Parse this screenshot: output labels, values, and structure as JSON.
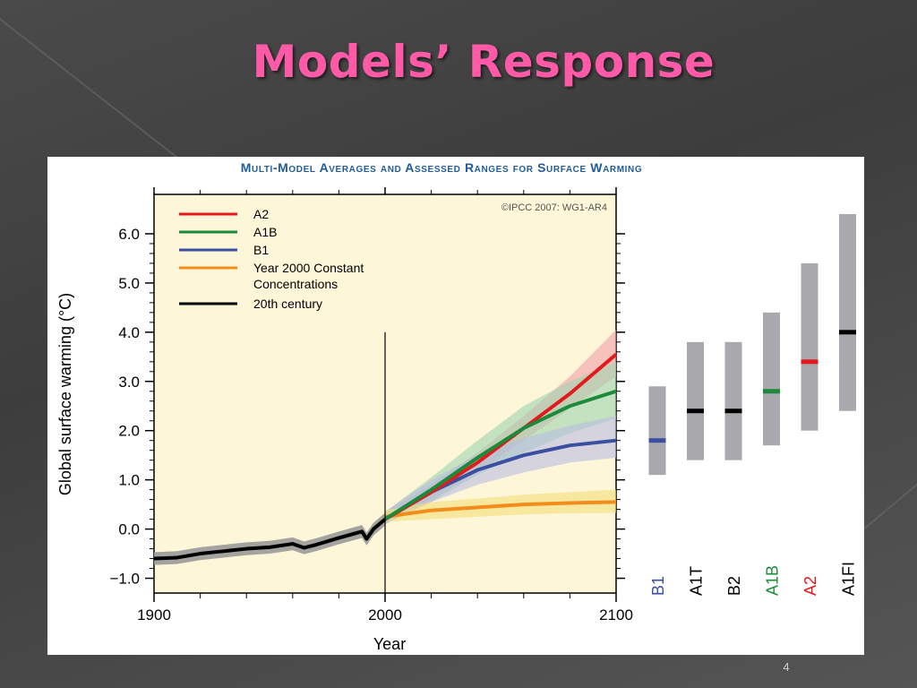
{
  "slide": {
    "title": "Models’ Response",
    "number": "4"
  },
  "chart_data": [
    {
      "type": "line",
      "title": "Multi-Model Averages and Assessed Ranges for Surface Warming",
      "credit": "©IPCC 2007: WG1-AR4",
      "xlabel": "Year",
      "ylabel": "Global surface warming (°C)",
      "xlim": [
        1900,
        2100
      ],
      "ylim": [
        -1.3,
        6.8
      ],
      "x_ticks": [
        "1900",
        "2000",
        "2100"
      ],
      "y_ticks": [
        "6.0",
        "5.0",
        "4.0",
        "3.0",
        "2.0",
        "1.0",
        "0.0",
        "−1.0"
      ],
      "marker_year": 2000,
      "background": "#fdf6d8",
      "legend": {
        "position": "top-left",
        "entries": [
          {
            "label": "A2",
            "color": "#e31a1c"
          },
          {
            "label": "A1B",
            "color": "#1b8a3a"
          },
          {
            "label": "B1",
            "color": "#3a4fa0"
          },
          {
            "label": "Year 2000 Constant",
            "label2": "Concentrations",
            "color": "#f28c1b"
          },
          {
            "label": "20th century",
            "color": "#000000"
          }
        ]
      },
      "series": [
        {
          "name": "20th century",
          "color": "#000000",
          "band_color": "#9a9a9a",
          "x": [
            1900,
            1910,
            1920,
            1930,
            1940,
            1950,
            1960,
            1965,
            1970,
            1980,
            1990,
            1992,
            1995,
            2000
          ],
          "y": [
            -0.6,
            -0.58,
            -0.5,
            -0.45,
            -0.4,
            -0.37,
            -0.3,
            -0.38,
            -0.32,
            -0.18,
            -0.05,
            -0.2,
            0.0,
            0.2
          ],
          "band": 0.13
        },
        {
          "name": "A2",
          "color": "#e31a1c",
          "band_color": "#f2a0a8",
          "x": [
            2000,
            2020,
            2040,
            2060,
            2080,
            2100
          ],
          "y": [
            0.2,
            0.75,
            1.35,
            2.05,
            2.75,
            3.55
          ],
          "band_lo": [
            0.1,
            0.6,
            1.15,
            1.8,
            2.45,
            3.1
          ],
          "band_hi": [
            0.35,
            0.9,
            1.55,
            2.3,
            3.1,
            4.05
          ]
        },
        {
          "name": "A1B",
          "color": "#1b8a3a",
          "band_color": "#9fd3b1",
          "x": [
            2000,
            2020,
            2040,
            2060,
            2080,
            2100
          ],
          "y": [
            0.2,
            0.8,
            1.45,
            2.05,
            2.5,
            2.8
          ],
          "band_lo": [
            0.1,
            0.55,
            1.1,
            1.55,
            1.95,
            2.25
          ],
          "band_hi": [
            0.35,
            1.05,
            1.8,
            2.5,
            3.0,
            3.4
          ]
        },
        {
          "name": "B1",
          "color": "#3a4fa0",
          "band_color": "#b9bde3",
          "x": [
            2000,
            2020,
            2040,
            2060,
            2080,
            2100
          ],
          "y": [
            0.2,
            0.75,
            1.2,
            1.5,
            1.7,
            1.8
          ],
          "band_lo": [
            0.1,
            0.55,
            0.9,
            1.15,
            1.35,
            1.45
          ],
          "band_hi": [
            0.35,
            1.0,
            1.5,
            1.85,
            2.1,
            2.3
          ]
        },
        {
          "name": "Year 2000 Constant Concentrations",
          "color": "#f28c1b",
          "band_color": "#f5e07a",
          "x": [
            2000,
            2020,
            2040,
            2060,
            2080,
            2100
          ],
          "y": [
            0.25,
            0.38,
            0.44,
            0.5,
            0.53,
            0.55
          ],
          "band_lo": [
            0.15,
            0.2,
            0.25,
            0.3,
            0.32,
            0.33
          ],
          "band_hi": [
            0.38,
            0.55,
            0.62,
            0.7,
            0.75,
            0.8
          ]
        }
      ]
    },
    {
      "type": "range",
      "categories": [
        "B1",
        "A1T",
        "B2",
        "A1B",
        "A2",
        "A1FI"
      ],
      "label_colors": [
        "#3a4fa0",
        "#000000",
        "#000000",
        "#1b8a3a",
        "#e31a1c",
        "#000000"
      ],
      "bar_color": "#a9a9ad",
      "low": [
        1.1,
        1.4,
        1.4,
        1.7,
        2.0,
        2.4
      ],
      "high": [
        2.9,
        3.8,
        3.8,
        4.4,
        5.4,
        6.4
      ],
      "best": [
        1.8,
        2.4,
        2.4,
        2.8,
        3.4,
        4.0
      ],
      "best_colors": [
        "#3a4fa0",
        "#000000",
        "#000000",
        "#1b8a3a",
        "#e31a1c",
        "#000000"
      ]
    }
  ]
}
